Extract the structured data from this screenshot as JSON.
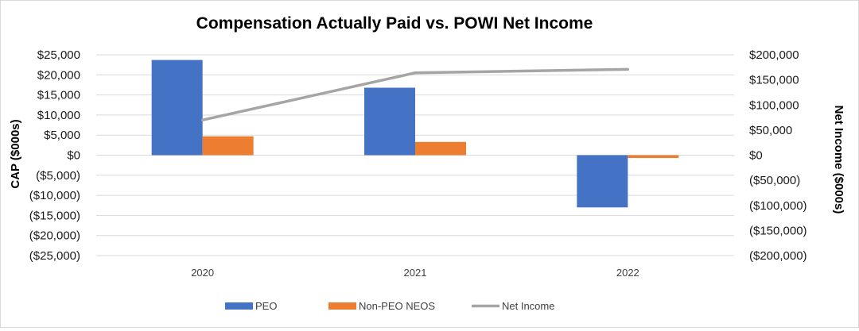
{
  "chart_data": {
    "type": "bar",
    "title": "Compensation Actually Paid vs. POWI Net Income",
    "categories": [
      "2020",
      "2021",
      "2022"
    ],
    "series": [
      {
        "name": "PEO",
        "type": "bar",
        "axis": "left",
        "color": "#4472C4",
        "values": [
          23700,
          16800,
          -13000
        ]
      },
      {
        "name": "Non-PEO NEOS",
        "type": "bar",
        "axis": "left",
        "color": "#ED7D31",
        "values": [
          4700,
          3300,
          -700
        ]
      },
      {
        "name": "Net Income",
        "type": "line",
        "axis": "right",
        "color": "#A5A5A5",
        "values": [
          70000,
          164000,
          171000
        ]
      }
    ],
    "y_left": {
      "label": "CAP ($000s)",
      "range": [
        -25000,
        25000
      ],
      "ticks": [
        "$25,000",
        "$20,000",
        "$15,000",
        "$10,000",
        "$5,000",
        "$0",
        "($5,000)",
        "($10,000)",
        "($15,000)",
        "($20,000)",
        "($25,000)"
      ]
    },
    "y_right": {
      "label": "Net Income ($000s)",
      "range": [
        -200000,
        200000
      ],
      "ticks": [
        "$200,000",
        "$150,000",
        "$100,000",
        "$50,000",
        "$0",
        "($50,000)",
        "($100,000)",
        "($150,000)",
        "($200,000)"
      ]
    },
    "grid": true,
    "legend_position": "bottom"
  }
}
